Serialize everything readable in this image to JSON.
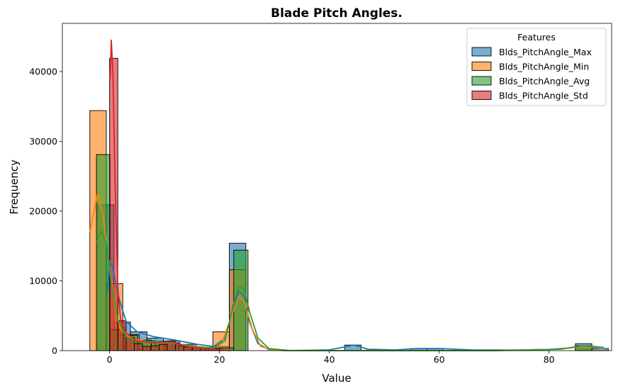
{
  "chart_data": {
    "type": "bar",
    "title": "Blade Pitch Angles.",
    "xlabel": "Value",
    "ylabel": "Frequency",
    "xlim": [
      -8.6,
      91.4
    ],
    "ylim": [
      0,
      46900
    ],
    "xticks": [
      "0",
      "20",
      "40",
      "60",
      "80"
    ],
    "xtick_values": [
      0,
      20,
      40,
      60,
      80
    ],
    "yticks": [
      "0",
      "10000",
      "20000",
      "30000",
      "40000"
    ],
    "ytick_values": [
      0,
      10000,
      20000,
      30000,
      40000
    ],
    "grid": false,
    "legend": {
      "title": "Features",
      "placement": "top-right",
      "entries": [
        "Blds_PitchAngle_Max",
        "Blds_PitchAngle_Min",
        "Blds_PitchAngle_Avg",
        "Blds_PitchAngle_Std"
      ]
    },
    "series": [
      {
        "name": "Blds_PitchAngle_Max",
        "color": "#1f77b4",
        "bins": [
          [
            -2.2,
            0.8,
            20900
          ],
          [
            0.8,
            3.8,
            4100
          ],
          [
            3.8,
            6.8,
            2700
          ],
          [
            6.8,
            9.8,
            1800
          ],
          [
            9.8,
            12.8,
            1400
          ],
          [
            12.8,
            15.8,
            900
          ],
          [
            15.8,
            18.8,
            500
          ],
          [
            18.8,
            21.8,
            600
          ],
          [
            21.8,
            24.8,
            15400
          ],
          [
            24.8,
            27.8,
            0
          ],
          [
            42.8,
            45.8,
            800
          ],
          [
            54.8,
            57.8,
            300
          ],
          [
            57.8,
            60.8,
            300
          ],
          [
            84.8,
            87.8,
            1000
          ],
          [
            87.8,
            90.8,
            300
          ]
        ],
        "kde": [
          [
            -0.4,
            8300
          ],
          [
            0,
            12800
          ],
          [
            0.6,
            12000
          ],
          [
            1.5,
            8000
          ],
          [
            3,
            4200
          ],
          [
            5,
            2700
          ],
          [
            8,
            2000
          ],
          [
            12,
            1500
          ],
          [
            16,
            900
          ],
          [
            19,
            600
          ],
          [
            21,
            1800
          ],
          [
            22.5,
            5800
          ],
          [
            23.5,
            8500
          ],
          [
            24.5,
            7800
          ],
          [
            25.5,
            4000
          ],
          [
            27,
            1000
          ],
          [
            29,
            150
          ],
          [
            32,
            0
          ],
          [
            40,
            100
          ],
          [
            44.5,
            800
          ],
          [
            47,
            200
          ],
          [
            52,
            100
          ],
          [
            56,
            300
          ],
          [
            60,
            300
          ],
          [
            66,
            100
          ],
          [
            78,
            60
          ],
          [
            84,
            400
          ],
          [
            87,
            700
          ],
          [
            90,
            450
          ]
        ]
      },
      {
        "name": "Blds_PitchAngle_Min",
        "color": "#ff7f0e",
        "bins": [
          [
            -3.6,
            -0.6,
            34400
          ],
          [
            -0.6,
            2.4,
            9600
          ],
          [
            2.4,
            5.4,
            2300
          ],
          [
            5.4,
            8.4,
            1400
          ],
          [
            8.4,
            11.4,
            1300
          ],
          [
            11.4,
            14.4,
            600
          ],
          [
            14.4,
            17.4,
            500
          ],
          [
            17.4,
            20.4,
            400
          ],
          [
            18.8,
            21.8,
            2700
          ],
          [
            21.8,
            24.8,
            11600
          ],
          [
            24.8,
            27.8,
            0
          ],
          [
            84.8,
            87.8,
            600
          ]
        ],
        "kde": [
          [
            -3.6,
            17000
          ],
          [
            -2.2,
            22500
          ],
          [
            -1.2,
            19500
          ],
          [
            0,
            12000
          ],
          [
            1,
            6000
          ],
          [
            2,
            3000
          ],
          [
            4,
            1700
          ],
          [
            7,
            1300
          ],
          [
            12,
            1000
          ],
          [
            16,
            600
          ],
          [
            19,
            400
          ],
          [
            20.5,
            1200
          ],
          [
            22,
            4500
          ],
          [
            23.5,
            7700
          ],
          [
            24.5,
            7200
          ],
          [
            26,
            3000
          ],
          [
            27.5,
            600
          ],
          [
            30,
            50
          ],
          [
            35,
            0
          ],
          [
            45,
            0
          ],
          [
            70,
            0
          ],
          [
            82,
            200
          ],
          [
            86,
            600
          ],
          [
            90,
            300
          ]
        ]
      },
      {
        "name": "Blds_PitchAngle_Avg",
        "color": "#2ca02c",
        "bins": [
          [
            -2.4,
            0.1,
            28100
          ],
          [
            0.1,
            2.6,
            3000
          ],
          [
            2.6,
            5.1,
            2200
          ],
          [
            5.1,
            7.6,
            1500
          ],
          [
            7.6,
            10.1,
            1300
          ],
          [
            10.1,
            12.6,
            1100
          ],
          [
            12.6,
            15.1,
            700
          ],
          [
            15.1,
            17.6,
            400
          ],
          [
            17.6,
            20.1,
            300
          ],
          [
            20.1,
            22.6,
            400
          ],
          [
            22.6,
            25.2,
            14400
          ],
          [
            84.8,
            87.8,
            700
          ]
        ],
        "kde": [
          [
            -2.4,
            15500
          ],
          [
            -1.6,
            17200
          ],
          [
            -0.6,
            15500
          ],
          [
            0.4,
            9000
          ],
          [
            1.5,
            4500
          ],
          [
            3,
            2000
          ],
          [
            5,
            1300
          ],
          [
            8,
            1300
          ],
          [
            12,
            1000
          ],
          [
            16,
            500
          ],
          [
            19,
            400
          ],
          [
            21,
            1400
          ],
          [
            22.5,
            6500
          ],
          [
            23.5,
            9200
          ],
          [
            24.5,
            8800
          ],
          [
            25.5,
            5500
          ],
          [
            27,
            1800
          ],
          [
            29,
            300
          ],
          [
            33,
            0
          ],
          [
            45,
            0
          ],
          [
            70,
            0
          ],
          [
            82,
            200
          ],
          [
            86,
            700
          ],
          [
            90,
            400
          ]
        ]
      },
      {
        "name": "Blds_PitchAngle_Std",
        "color": "#d62728",
        "bins": [
          [
            0,
            1.5,
            41900
          ],
          [
            1.5,
            3,
            4300
          ],
          [
            3,
            4.5,
            1900
          ],
          [
            4.5,
            6,
            1000
          ],
          [
            6,
            7.5,
            600
          ],
          [
            7.5,
            9,
            700
          ],
          [
            9,
            10.5,
            900
          ],
          [
            10.5,
            12,
            1400
          ],
          [
            12,
            13.5,
            900
          ],
          [
            13.5,
            15,
            500
          ],
          [
            15,
            16.5,
            400
          ],
          [
            16.5,
            18,
            300
          ],
          [
            18,
            20,
            200
          ]
        ],
        "kde": [
          [
            0.1,
            39000
          ],
          [
            0.3,
            44500
          ],
          [
            0.6,
            40000
          ],
          [
            1,
            24000
          ],
          [
            1.5,
            9000
          ],
          [
            2,
            4500
          ],
          [
            3,
            2500
          ],
          [
            5,
            1400
          ],
          [
            8,
            1100
          ],
          [
            10.5,
            1300
          ],
          [
            12,
            1100
          ],
          [
            14,
            600
          ],
          [
            17,
            300
          ],
          [
            20,
            150
          ],
          [
            22,
            0
          ]
        ]
      }
    ]
  }
}
